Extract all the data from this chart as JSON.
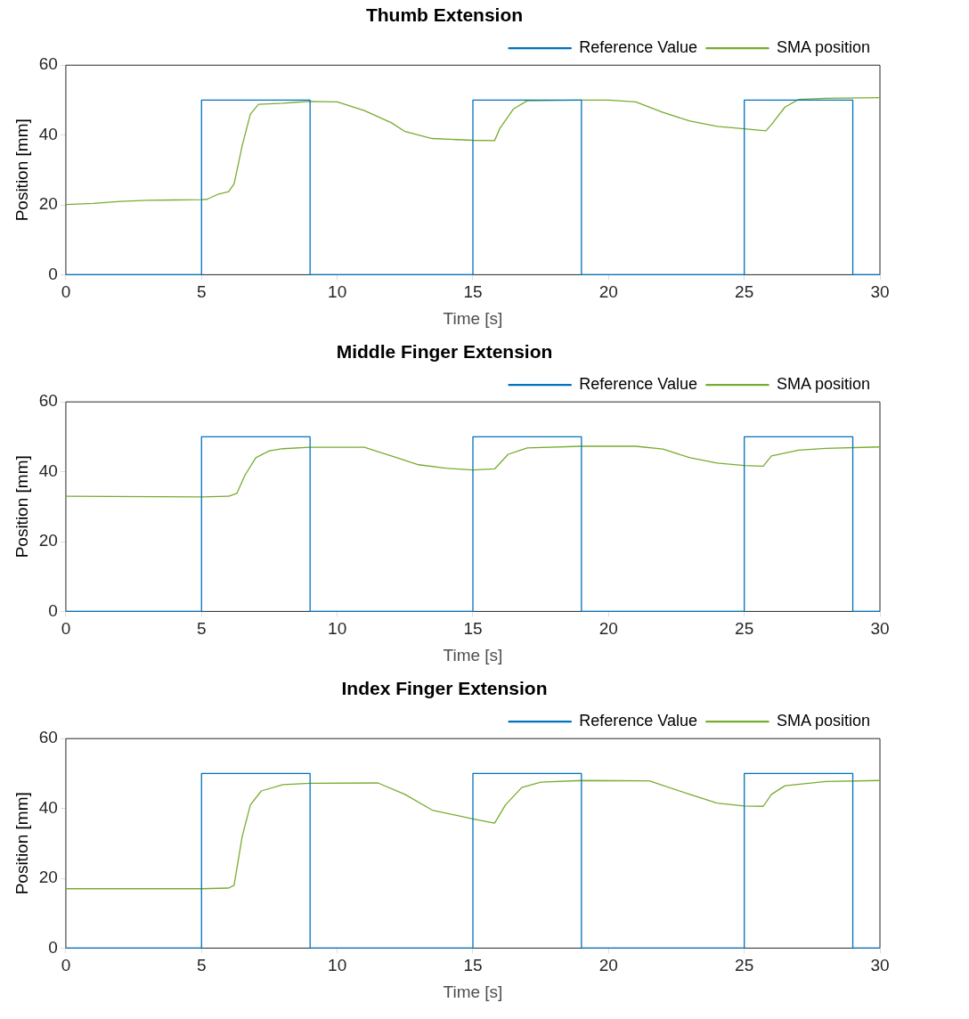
{
  "chart_data": [
    {
      "type": "line",
      "title": "Thumb Extension",
      "xlabel": "Time [s]",
      "ylabel": "Position [mm]",
      "xlim": [
        0,
        30
      ],
      "xticks": [
        0,
        5,
        10,
        15,
        20,
        25,
        30
      ],
      "ylim": [
        0,
        60
      ],
      "yticks": [
        0,
        20,
        40,
        60
      ],
      "grid": false,
      "legend": "top right",
      "marker": "none",
      "line_style": "solid",
      "series": [
        {
          "name": "Reference Value",
          "color": "#0072bd",
          "x": [
            0,
            5,
            5,
            9,
            9,
            15,
            15,
            19,
            19,
            25,
            25,
            29,
            29,
            30
          ],
          "values": [
            0,
            0,
            50,
            50,
            0,
            0,
            50,
            50,
            0,
            0,
            50,
            50,
            0,
            0
          ]
        },
        {
          "name": "SMA position",
          "color": "#77ac30",
          "x": [
            0,
            1,
            2,
            3,
            4,
            5,
            5.2,
            5.6,
            6,
            6.2,
            6.5,
            6.8,
            7.1,
            8,
            8.5,
            9,
            10,
            11,
            12,
            12.5,
            13.5,
            15,
            15.8,
            16,
            16.5,
            17,
            19,
            20,
            21,
            22,
            23,
            24,
            25,
            25.8,
            26,
            26.5,
            27,
            28,
            30
          ],
          "values": [
            20.1,
            20.4,
            21,
            21.3,
            21.4,
            21.5,
            21.6,
            23,
            23.8,
            26,
            37,
            46,
            48.8,
            49.1,
            49.4,
            49.6,
            49.5,
            47,
            43.5,
            41,
            39,
            38.5,
            38.4,
            42,
            47.5,
            49.8,
            50,
            50,
            49.5,
            46.5,
            44,
            42.5,
            41.8,
            41.2,
            43,
            48,
            50.2,
            50.5,
            50.7
          ]
        }
      ]
    },
    {
      "type": "line",
      "title": "Middle Finger Extension",
      "xlabel": "Time [s]",
      "ylabel": "Position [mm]",
      "xlim": [
        0,
        30
      ],
      "xticks": [
        0,
        5,
        10,
        15,
        20,
        25,
        30
      ],
      "ylim": [
        0,
        60
      ],
      "yticks": [
        0,
        20,
        40,
        60
      ],
      "grid": false,
      "legend": "top right",
      "marker": "none",
      "line_style": "solid",
      "series": [
        {
          "name": "Reference Value",
          "color": "#0072bd",
          "x": [
            0,
            5,
            5,
            9,
            9,
            15,
            15,
            19,
            19,
            25,
            25,
            29,
            29,
            30
          ],
          "values": [
            0,
            0,
            50,
            50,
            0,
            0,
            50,
            50,
            0,
            0,
            50,
            50,
            0,
            0
          ]
        },
        {
          "name": "SMA position",
          "color": "#77ac30",
          "x": [
            0,
            5,
            6,
            6.3,
            6.6,
            7,
            7.5,
            8,
            9,
            11,
            12,
            13,
            14,
            15,
            15.8,
            16.3,
            17,
            19,
            21,
            22,
            23,
            24,
            25,
            25.7,
            26,
            27,
            28,
            30
          ],
          "values": [
            33,
            32.8,
            33,
            33.8,
            39,
            44,
            46,
            46.6,
            47,
            47,
            44.5,
            42,
            41,
            40.5,
            40.8,
            45,
            46.8,
            47.3,
            47.3,
            46.5,
            44,
            42.5,
            41.8,
            41.6,
            44.5,
            46.2,
            46.7,
            47.1
          ]
        }
      ]
    },
    {
      "type": "line",
      "title": "Index Finger Extension",
      "xlabel": "Time [s]",
      "ylabel": "Position [mm]",
      "xlim": [
        0,
        30
      ],
      "xticks": [
        0,
        5,
        10,
        15,
        20,
        25,
        30
      ],
      "ylim": [
        0,
        60
      ],
      "yticks": [
        0,
        20,
        40,
        60
      ],
      "grid": false,
      "legend": "top right",
      "marker": "none",
      "line_style": "solid",
      "series": [
        {
          "name": "Reference Value",
          "color": "#0072bd",
          "x": [
            0,
            5,
            5,
            9,
            9,
            15,
            15,
            19,
            19,
            25,
            25,
            29,
            29,
            30
          ],
          "values": [
            0,
            0,
            50,
            50,
            0,
            0,
            50,
            50,
            0,
            0,
            50,
            50,
            0,
            0
          ]
        },
        {
          "name": "SMA position",
          "color": "#77ac30",
          "x": [
            0,
            5,
            6,
            6.2,
            6.5,
            6.8,
            7.2,
            8,
            9,
            11.5,
            12.5,
            13.5,
            15,
            15.8,
            16.2,
            16.8,
            17.5,
            19,
            21.5,
            23,
            24,
            25,
            25.7,
            26,
            26.5,
            28,
            30
          ],
          "values": [
            17,
            17,
            17.2,
            18,
            32,
            41,
            45,
            46.8,
            47.2,
            47.3,
            44,
            39.5,
            37,
            35.8,
            41,
            46,
            47.5,
            48,
            47.9,
            44,
            41.5,
            40.7,
            40.6,
            44,
            46.5,
            47.7,
            48
          ]
        }
      ]
    }
  ]
}
